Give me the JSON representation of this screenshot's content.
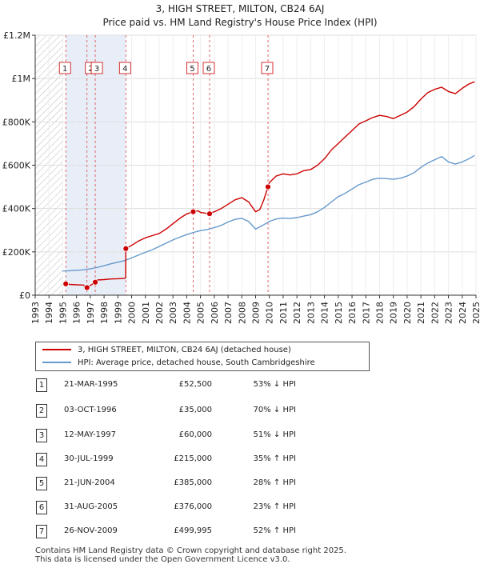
{
  "title": {
    "line1": "3, HIGH STREET, MILTON, CB24 6AJ",
    "line2": "Price paid vs. HM Land Registry's House Price Index (HPI)"
  },
  "colors": {
    "property": "#cc0000",
    "hpi": "#6699cc",
    "shade": "#e8eef8",
    "hatch": "#bbbbbb",
    "marker_line": "#dd4444"
  },
  "chart_data": {
    "type": "line",
    "x_start": 1993,
    "x_end": 2025,
    "ylim": [
      0,
      1200000
    ],
    "y_ticks": [
      {
        "value": 0,
        "label": "£0"
      },
      {
        "value": 200000,
        "label": "£200K"
      },
      {
        "value": 400000,
        "label": "£400K"
      },
      {
        "value": 600000,
        "label": "£600K"
      },
      {
        "value": 800000,
        "label": "£800K"
      },
      {
        "value": 1000000,
        "label": "£1M"
      },
      {
        "value": 1200000,
        "label": "£1.2M"
      }
    ],
    "x_ticks": [
      "1993",
      "1994",
      "1995",
      "1996",
      "1997",
      "1998",
      "1999",
      "2000",
      "2001",
      "2002",
      "2003",
      "2004",
      "2005",
      "2006",
      "2007",
      "2008",
      "2009",
      "2010",
      "2011",
      "2012",
      "2013",
      "2014",
      "2015",
      "2016",
      "2017",
      "2018",
      "2019",
      "2020",
      "2021",
      "2022",
      "2023",
      "2024",
      "2025"
    ],
    "shaded_period": [
      1995.22,
      1999.58
    ],
    "hatched_period_end": 1995.0,
    "series": [
      {
        "name": "3, HIGH STREET, MILTON, CB24 6AJ (detached house)",
        "x": [
          1995.22,
          1995.5,
          1996.0,
          1996.5,
          1996.76,
          1997.0,
          1997.36,
          1997.5,
          1998.0,
          1998.5,
          1999.0,
          1999.5,
          1999.57,
          1999.58,
          2000.0,
          2000.5,
          2001.0,
          2001.5,
          2002.0,
          2002.5,
          2003.0,
          2003.5,
          2004.0,
          2004.47,
          2004.8,
          2005.0,
          2005.4,
          2005.66,
          2006.0,
          2006.5,
          2007.0,
          2007.5,
          2008.0,
          2008.5,
          2009.0,
          2009.3,
          2009.6,
          2009.89,
          2010.0,
          2010.5,
          2011.0,
          2011.5,
          2012.0,
          2012.5,
          2013.0,
          2013.5,
          2014.0,
          2014.5,
          2015.0,
          2015.5,
          2016.0,
          2016.5,
          2017.0,
          2017.5,
          2018.0,
          2018.5,
          2019.0,
          2019.5,
          2020.0,
          2020.5,
          2021.0,
          2021.5,
          2022.0,
          2022.5,
          2023.0,
          2023.5,
          2024.0,
          2024.5,
          2024.9
        ],
        "values": [
          52500,
          50000,
          48000,
          47000,
          35000,
          45000,
          60000,
          70000,
          72000,
          75000,
          76000,
          78000,
          80000,
          215000,
          230000,
          250000,
          265000,
          275000,
          285000,
          305000,
          330000,
          355000,
          375000,
          385000,
          390000,
          382000,
          378000,
          376000,
          385000,
          400000,
          420000,
          440000,
          450000,
          430000,
          385000,
          395000,
          440000,
          499995,
          520000,
          550000,
          560000,
          555000,
          560000,
          575000,
          580000,
          600000,
          630000,
          670000,
          700000,
          730000,
          760000,
          790000,
          805000,
          820000,
          830000,
          825000,
          815000,
          830000,
          845000,
          870000,
          905000,
          935000,
          950000,
          960000,
          940000,
          930000,
          955000,
          975000,
          985000
        ]
      },
      {
        "name": "HPI: Average price, detached house, South Cambridgeshire",
        "x": [
          1995.0,
          1995.5,
          1996.0,
          1996.5,
          1997.0,
          1997.5,
          1998.0,
          1998.5,
          1999.0,
          1999.5,
          2000.0,
          2000.5,
          2001.0,
          2001.5,
          2002.0,
          2002.5,
          2003.0,
          2003.5,
          2004.0,
          2004.5,
          2005.0,
          2005.5,
          2006.0,
          2006.5,
          2007.0,
          2007.5,
          2008.0,
          2008.5,
          2009.0,
          2009.5,
          2010.0,
          2010.5,
          2011.0,
          2011.5,
          2012.0,
          2012.5,
          2013.0,
          2013.5,
          2014.0,
          2014.5,
          2015.0,
          2015.5,
          2016.0,
          2016.5,
          2017.0,
          2017.5,
          2018.0,
          2018.5,
          2019.0,
          2019.5,
          2020.0,
          2020.5,
          2021.0,
          2021.5,
          2022.0,
          2022.5,
          2023.0,
          2023.5,
          2024.0,
          2024.5,
          2024.9
        ],
        "values": [
          112000,
          113000,
          115000,
          117000,
          122000,
          128000,
          136000,
          145000,
          152000,
          160000,
          172000,
          185000,
          198000,
          210000,
          225000,
          240000,
          255000,
          268000,
          280000,
          290000,
          298000,
          303000,
          312000,
          322000,
          338000,
          350000,
          355000,
          340000,
          305000,
          322000,
          340000,
          352000,
          356000,
          354000,
          358000,
          365000,
          372000,
          385000,
          405000,
          430000,
          455000,
          470000,
          490000,
          510000,
          522000,
          535000,
          540000,
          538000,
          535000,
          540000,
          550000,
          565000,
          590000,
          610000,
          625000,
          640000,
          615000,
          605000,
          615000,
          630000,
          645000
        ]
      }
    ],
    "sales": [
      {
        "num": "1",
        "year": 1995.22,
        "price": 52500
      },
      {
        "num": "2",
        "year": 1996.76,
        "price": 35000
      },
      {
        "num": "3",
        "year": 1997.36,
        "price": 60000
      },
      {
        "num": "4",
        "year": 1999.58,
        "price": 215000
      },
      {
        "num": "5",
        "year": 2004.47,
        "price": 385000
      },
      {
        "num": "6",
        "year": 2005.66,
        "price": 376000
      },
      {
        "num": "7",
        "year": 2009.9,
        "price": 499995
      }
    ]
  },
  "legend": {
    "property_label": "3, HIGH STREET, MILTON, CB24 6AJ (detached house)",
    "hpi_label": "HPI: Average price, detached house, South Cambridgeshire"
  },
  "transactions": [
    {
      "num": "1",
      "date": "21-MAR-1995",
      "price": "£52,500",
      "hpi": "53% ↓ HPI"
    },
    {
      "num": "2",
      "date": "03-OCT-1996",
      "price": "£35,000",
      "hpi": "70% ↓ HPI"
    },
    {
      "num": "3",
      "date": "12-MAY-1997",
      "price": "£60,000",
      "hpi": "51% ↓ HPI"
    },
    {
      "num": "4",
      "date": "30-JUL-1999",
      "price": "£215,000",
      "hpi": "35% ↑ HPI"
    },
    {
      "num": "5",
      "date": "21-JUN-2004",
      "price": "£385,000",
      "hpi": "28% ↑ HPI"
    },
    {
      "num": "6",
      "date": "31-AUG-2005",
      "price": "£376,000",
      "hpi": "23% ↑ HPI"
    },
    {
      "num": "7",
      "date": "26-NOV-2009",
      "price": "£499,995",
      "hpi": "52% ↑ HPI"
    }
  ],
  "footer": {
    "line1": "Contains HM Land Registry data © Crown copyright and database right 2025.",
    "line2": "This data is licensed under the Open Government Licence v3.0."
  }
}
